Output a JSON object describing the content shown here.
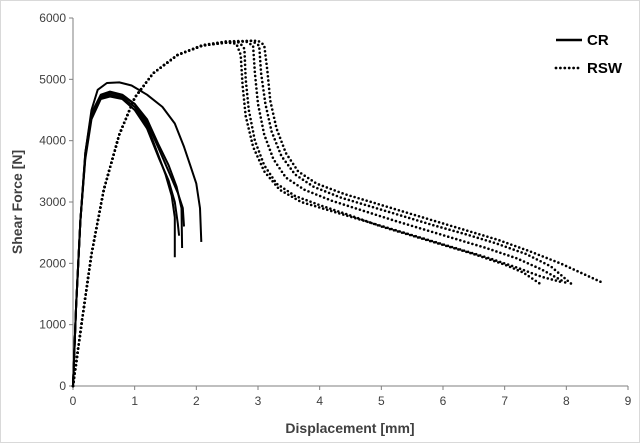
{
  "chart_data": {
    "type": "line",
    "title": "",
    "xlabel": "Displacement [mm]",
    "ylabel": "Shear Force [N]",
    "xlim": [
      0,
      9
    ],
    "ylim": [
      0,
      6000
    ],
    "x_ticks": [
      0,
      1,
      2,
      3,
      4,
      5,
      6,
      7,
      8,
      9
    ],
    "y_ticks": [
      0,
      1000,
      2000,
      3000,
      4000,
      5000,
      6000
    ],
    "grid": false,
    "legend_position": "top-right",
    "legend": [
      {
        "label": "CR",
        "style": "solid"
      },
      {
        "label": "RSW",
        "style": "dotted"
      }
    ],
    "colors": {
      "series": "#000000",
      "axis": "#7f7f7f",
      "text": "#404040"
    },
    "series": [
      {
        "group": "CR",
        "style": "solid",
        "points": [
          [
            0,
            0
          ],
          [
            0.05,
            1300
          ],
          [
            0.12,
            2700
          ],
          [
            0.2,
            3800
          ],
          [
            0.3,
            4500
          ],
          [
            0.4,
            4830
          ],
          [
            0.55,
            4940
          ],
          [
            0.75,
            4950
          ],
          [
            0.95,
            4900
          ],
          [
            1.2,
            4750
          ],
          [
            1.45,
            4550
          ],
          [
            1.65,
            4280
          ],
          [
            1.8,
            3900
          ],
          [
            1.9,
            3600
          ],
          [
            2.0,
            3300
          ],
          [
            2.06,
            2900
          ],
          [
            2.08,
            2350
          ]
        ]
      },
      {
        "group": "CR",
        "style": "solid",
        "points": [
          [
            0,
            0
          ],
          [
            0.05,
            1300
          ],
          [
            0.12,
            2700
          ],
          [
            0.2,
            3800
          ],
          [
            0.3,
            4450
          ],
          [
            0.45,
            4750
          ],
          [
            0.6,
            4800
          ],
          [
            0.8,
            4750
          ],
          [
            1.0,
            4600
          ],
          [
            1.2,
            4300
          ],
          [
            1.4,
            3850
          ],
          [
            1.55,
            3500
          ],
          [
            1.7,
            3150
          ],
          [
            1.78,
            2900
          ],
          [
            1.8,
            2600
          ]
        ]
      },
      {
        "group": "CR",
        "style": "solid",
        "points": [
          [
            0,
            0
          ],
          [
            0.05,
            1300
          ],
          [
            0.12,
            2700
          ],
          [
            0.2,
            3750
          ],
          [
            0.3,
            4400
          ],
          [
            0.45,
            4700
          ],
          [
            0.6,
            4750
          ],
          [
            0.8,
            4700
          ],
          [
            1.0,
            4550
          ],
          [
            1.2,
            4250
          ],
          [
            1.35,
            3850
          ],
          [
            1.5,
            3450
          ],
          [
            1.6,
            3100
          ],
          [
            1.65,
            2750
          ],
          [
            1.65,
            2100
          ]
        ]
      },
      {
        "group": "CR",
        "style": "solid",
        "points": [
          [
            0,
            0
          ],
          [
            0.05,
            1300
          ],
          [
            0.12,
            2700
          ],
          [
            0.2,
            3750
          ],
          [
            0.3,
            4400
          ],
          [
            0.45,
            4720
          ],
          [
            0.6,
            4780
          ],
          [
            0.8,
            4730
          ],
          [
            1.0,
            4600
          ],
          [
            1.2,
            4350
          ],
          [
            1.38,
            3950
          ],
          [
            1.55,
            3600
          ],
          [
            1.68,
            3250
          ],
          [
            1.76,
            2900
          ],
          [
            1.77,
            2250
          ]
        ]
      },
      {
        "group": "CR",
        "style": "solid",
        "points": [
          [
            0,
            0
          ],
          [
            0.05,
            1300
          ],
          [
            0.12,
            2700
          ],
          [
            0.2,
            3700
          ],
          [
            0.3,
            4350
          ],
          [
            0.45,
            4680
          ],
          [
            0.6,
            4720
          ],
          [
            0.8,
            4680
          ],
          [
            1.0,
            4500
          ],
          [
            1.2,
            4200
          ],
          [
            1.4,
            3700
          ],
          [
            1.55,
            3350
          ],
          [
            1.65,
            3000
          ],
          [
            1.7,
            2650
          ],
          [
            1.72,
            2450
          ]
        ]
      },
      {
        "group": "RSW",
        "style": "dotted",
        "points": [
          [
            0,
            0
          ],
          [
            0.15,
            1100
          ],
          [
            0.3,
            2150
          ],
          [
            0.5,
            3200
          ],
          [
            0.75,
            4100
          ],
          [
            1.0,
            4700
          ],
          [
            1.3,
            5100
          ],
          [
            1.7,
            5400
          ],
          [
            2.1,
            5550
          ],
          [
            2.5,
            5620
          ],
          [
            2.7,
            5600
          ],
          [
            2.78,
            5500
          ],
          [
            2.8,
            5000
          ],
          [
            2.85,
            4500
          ],
          [
            2.95,
            4000
          ],
          [
            3.1,
            3600
          ],
          [
            3.3,
            3300
          ],
          [
            3.6,
            3100
          ],
          [
            4.0,
            2950
          ],
          [
            4.5,
            2780
          ],
          [
            5.0,
            2600
          ],
          [
            5.5,
            2450
          ],
          [
            6.0,
            2300
          ],
          [
            6.5,
            2150
          ],
          [
            7.0,
            1980
          ],
          [
            7.3,
            1850
          ],
          [
            7.6,
            1650
          ]
        ]
      },
      {
        "group": "RSW",
        "style": "dotted",
        "points": [
          [
            0,
            0
          ],
          [
            0.15,
            1100
          ],
          [
            0.3,
            2150
          ],
          [
            0.5,
            3200
          ],
          [
            0.75,
            4100
          ],
          [
            1.0,
            4700
          ],
          [
            1.3,
            5100
          ],
          [
            1.7,
            5400
          ],
          [
            2.1,
            5550
          ],
          [
            2.5,
            5600
          ],
          [
            2.8,
            5620
          ],
          [
            2.92,
            5550
          ],
          [
            2.95,
            5100
          ],
          [
            3.0,
            4600
          ],
          [
            3.1,
            4100
          ],
          [
            3.25,
            3700
          ],
          [
            3.45,
            3400
          ],
          [
            3.75,
            3200
          ],
          [
            4.2,
            3020
          ],
          [
            4.7,
            2860
          ],
          [
            5.2,
            2700
          ],
          [
            5.7,
            2550
          ],
          [
            6.2,
            2400
          ],
          [
            6.7,
            2250
          ],
          [
            7.2,
            2080
          ],
          [
            7.6,
            1900
          ],
          [
            8.0,
            1680
          ]
        ]
      },
      {
        "group": "RSW",
        "style": "dotted",
        "points": [
          [
            0,
            0
          ],
          [
            0.15,
            1100
          ],
          [
            0.3,
            2150
          ],
          [
            0.5,
            3200
          ],
          [
            0.75,
            4100
          ],
          [
            1.0,
            4700
          ],
          [
            1.3,
            5100
          ],
          [
            1.7,
            5400
          ],
          [
            2.1,
            5550
          ],
          [
            2.5,
            5600
          ],
          [
            2.9,
            5630
          ],
          [
            3.02,
            5550
          ],
          [
            3.05,
            5100
          ],
          [
            3.12,
            4600
          ],
          [
            3.22,
            4150
          ],
          [
            3.38,
            3750
          ],
          [
            3.6,
            3450
          ],
          [
            3.9,
            3250
          ],
          [
            4.35,
            3070
          ],
          [
            4.85,
            2920
          ],
          [
            5.35,
            2770
          ],
          [
            5.85,
            2620
          ],
          [
            6.35,
            2480
          ],
          [
            6.85,
            2330
          ],
          [
            7.35,
            2150
          ],
          [
            7.75,
            1950
          ],
          [
            8.1,
            1650
          ]
        ]
      },
      {
        "group": "RSW",
        "style": "dotted",
        "points": [
          [
            0,
            0
          ],
          [
            0.15,
            1100
          ],
          [
            0.3,
            2150
          ],
          [
            0.5,
            3200
          ],
          [
            0.75,
            4100
          ],
          [
            1.0,
            4700
          ],
          [
            1.3,
            5100
          ],
          [
            1.7,
            5400
          ],
          [
            2.1,
            5550
          ],
          [
            2.5,
            5600
          ],
          [
            2.65,
            5580
          ],
          [
            2.72,
            5400
          ],
          [
            2.75,
            4900
          ],
          [
            2.8,
            4400
          ],
          [
            2.92,
            3900
          ],
          [
            3.1,
            3500
          ],
          [
            3.35,
            3200
          ],
          [
            3.7,
            3000
          ],
          [
            4.2,
            2850
          ],
          [
            4.7,
            2700
          ],
          [
            5.2,
            2550
          ],
          [
            5.7,
            2400
          ],
          [
            6.2,
            2250
          ],
          [
            6.7,
            2100
          ],
          [
            7.2,
            1930
          ],
          [
            7.6,
            1780
          ],
          [
            7.9,
            1700
          ]
        ]
      },
      {
        "group": "RSW",
        "style": "dotted",
        "points": [
          [
            0,
            0
          ],
          [
            0.15,
            1100
          ],
          [
            0.3,
            2150
          ],
          [
            0.5,
            3200
          ],
          [
            0.75,
            4100
          ],
          [
            1.0,
            4700
          ],
          [
            1.3,
            5100
          ],
          [
            1.7,
            5400
          ],
          [
            2.1,
            5560
          ],
          [
            2.5,
            5620
          ],
          [
            3.0,
            5630
          ],
          [
            3.1,
            5560
          ],
          [
            3.15,
            5150
          ],
          [
            3.2,
            4650
          ],
          [
            3.3,
            4200
          ],
          [
            3.45,
            3800
          ],
          [
            3.65,
            3500
          ],
          [
            3.95,
            3300
          ],
          [
            4.4,
            3130
          ],
          [
            4.9,
            2980
          ],
          [
            5.4,
            2830
          ],
          [
            5.9,
            2680
          ],
          [
            6.4,
            2530
          ],
          [
            6.9,
            2380
          ],
          [
            7.4,
            2200
          ],
          [
            7.9,
            2000
          ],
          [
            8.6,
            1680
          ]
        ]
      }
    ]
  }
}
